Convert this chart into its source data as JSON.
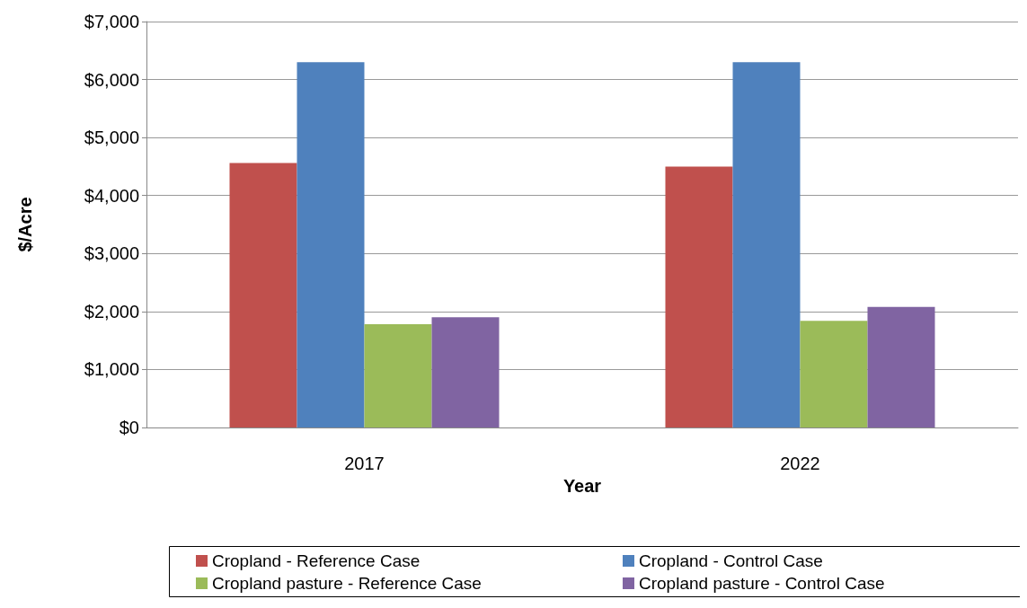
{
  "chart_data": {
    "type": "bar",
    "xlabel": "Year",
    "ylabel": "$/Acre",
    "categories": [
      "2017",
      "2022"
    ],
    "series": [
      {
        "name": "Cropland - Reference Case",
        "color": "#c0504d",
        "values": [
          4560,
          4500
        ]
      },
      {
        "name": "Cropland - Control Case",
        "color": "#4f81bd",
        "values": [
          6300,
          6300
        ]
      },
      {
        "name": "Cropland pasture - Reference Case",
        "color": "#9bbb59",
        "values": [
          1780,
          1840
        ]
      },
      {
        "name": "Cropland pasture - Control Case",
        "color": "#8064a2",
        "values": [
          1900,
          2080
        ]
      }
    ],
    "ylim": [
      0,
      7000
    ],
    "yticks": [
      {
        "value": 0,
        "label": "$0"
      },
      {
        "value": 1000,
        "label": "$1,000"
      },
      {
        "value": 2000,
        "label": "$2,000"
      },
      {
        "value": 3000,
        "label": "$3,000"
      },
      {
        "value": 4000,
        "label": "$4,000"
      },
      {
        "value": 5000,
        "label": "$5,000"
      },
      {
        "value": 6000,
        "label": "$6,000"
      },
      {
        "value": 7000,
        "label": "$7,000"
      }
    ],
    "grid": "y",
    "legend": "bottom"
  }
}
